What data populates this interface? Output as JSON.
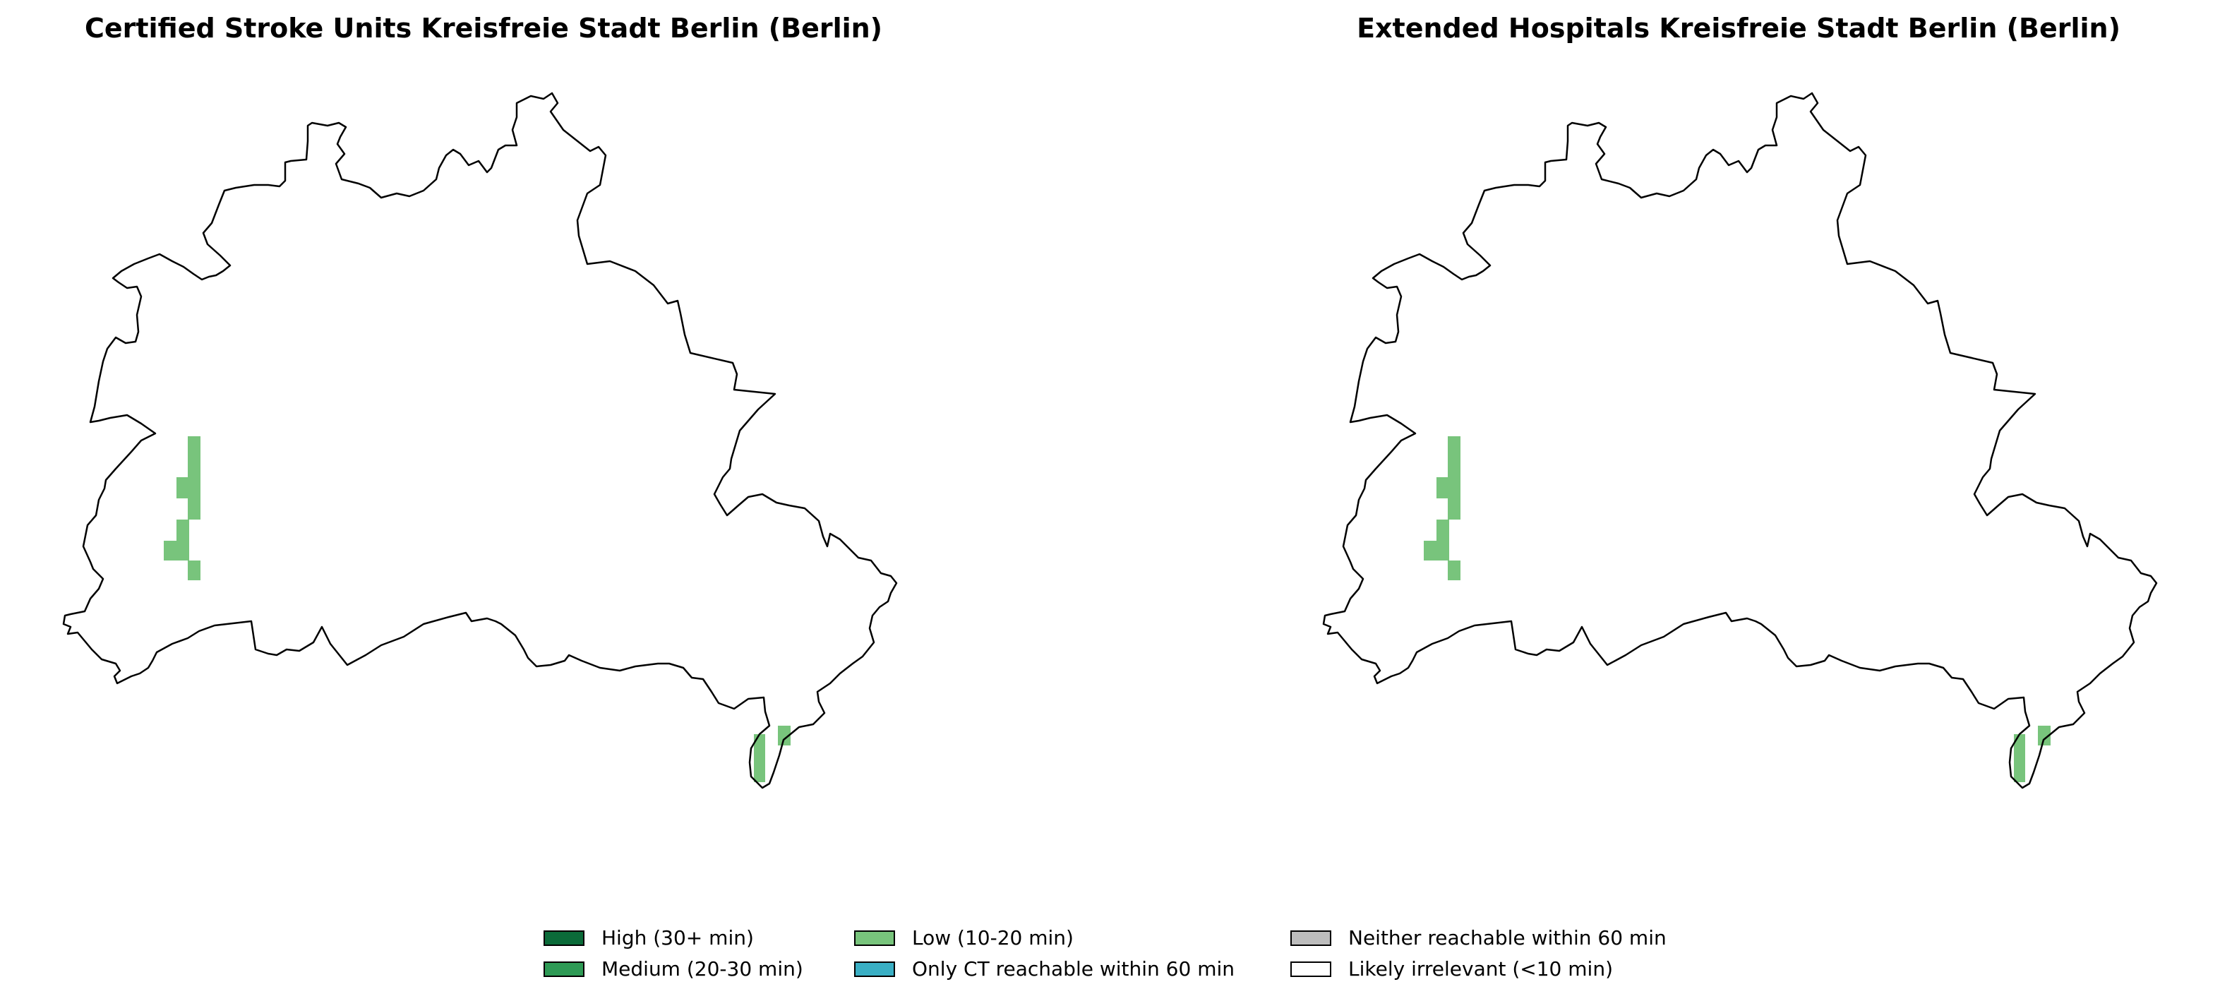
{
  "panels": [
    {
      "title": "Certified Stroke Units Kreisfreie Stadt Berlin (Berlin)"
    },
    {
      "title": "Extended Hospitals Kreisfreie Stadt Berlin (Berlin)"
    }
  ],
  "legend": [
    {
      "label": "High (30+ min)",
      "color": "#0b6b39"
    },
    {
      "label": "Medium (20-30 min)",
      "color": "#2e9a55"
    },
    {
      "label": "Low (10-20 min)",
      "color": "#78c47c"
    },
    {
      "label": "Only CT reachable within 60 min",
      "color": "#3aafc4"
    },
    {
      "label": "Neither reachable within 60 min",
      "color": "#bdbdbd"
    },
    {
      "label": "Likely irrelevant (<10 min)",
      "color": "#ffffff"
    }
  ]
}
